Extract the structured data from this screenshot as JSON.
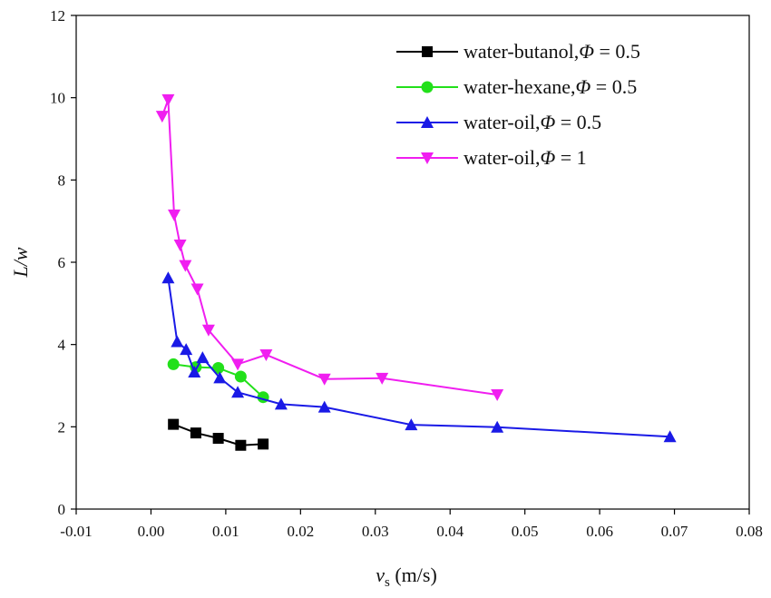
{
  "chart_data": {
    "type": "line",
    "xlabel": {
      "var": "v",
      "sub": "s",
      "unit": " (m/s)"
    },
    "ylabel": "L/w",
    "xlim": [
      -0.01,
      0.08
    ],
    "ylim": [
      0,
      12
    ],
    "xticks": [
      -0.01,
      0.0,
      0.01,
      0.02,
      0.03,
      0.04,
      0.05,
      0.06,
      0.07,
      0.08
    ],
    "xtick_labels": [
      "-0.01",
      "0.00",
      "0.01",
      "0.02",
      "0.03",
      "0.04",
      "0.05",
      "0.06",
      "0.07",
      "0.08"
    ],
    "yticks": [
      0,
      2,
      4,
      6,
      8,
      10,
      12
    ],
    "ytick_labels": [
      "0",
      "2",
      "4",
      "6",
      "8",
      "10",
      "12"
    ],
    "grid": false,
    "legend_position": "top-right",
    "series": [
      {
        "name": "water-butanol,Φ = 0.5",
        "name_parts": {
          "prefix": "water-butanol,",
          "phi": "Φ",
          "suffix": " = 0.5"
        },
        "color": "#000000",
        "marker": "square",
        "x": [
          0.003,
          0.006,
          0.009,
          0.012,
          0.015
        ],
        "y": [
          2.06,
          1.85,
          1.72,
          1.55,
          1.58
        ]
      },
      {
        "name": "water-hexane,Φ = 0.5",
        "name_parts": {
          "prefix": "water-hexane,",
          "phi": "Φ",
          "suffix": " = 0.5"
        },
        "color": "#22e01a",
        "marker": "circle",
        "x": [
          0.003,
          0.006,
          0.009,
          0.012,
          0.015
        ],
        "y": [
          3.52,
          3.45,
          3.43,
          3.22,
          2.72
        ]
      },
      {
        "name": "water-oil,Φ = 0.5",
        "name_parts": {
          "prefix": "water-oil,",
          "phi": "Φ",
          "suffix": " = 0.5"
        },
        "color": "#1a1ae6",
        "marker": "triangle-up",
        "x": [
          0.0023,
          0.0035,
          0.0047,
          0.0058,
          0.0069,
          0.0092,
          0.0116,
          0.0174,
          0.0232,
          0.0348,
          0.0463,
          0.0694
        ],
        "y": [
          5.62,
          4.07,
          3.88,
          3.33,
          3.68,
          3.19,
          2.84,
          2.55,
          2.48,
          2.05,
          1.99,
          1.76
        ]
      },
      {
        "name": "water-oil,Φ = 1",
        "name_parts": {
          "prefix": "water-oil,",
          "phi": "Φ",
          "suffix": " = 1"
        },
        "color": "#f01ef0",
        "marker": "triangle-down",
        "x": [
          0.0015,
          0.0023,
          0.0031,
          0.0039,
          0.0046,
          0.0062,
          0.0077,
          0.0116,
          0.0154,
          0.0232,
          0.0309,
          0.0463
        ],
        "y": [
          9.55,
          9.95,
          7.15,
          6.42,
          5.92,
          5.35,
          4.35,
          3.52,
          3.75,
          3.16,
          3.18,
          2.78
        ]
      }
    ]
  }
}
